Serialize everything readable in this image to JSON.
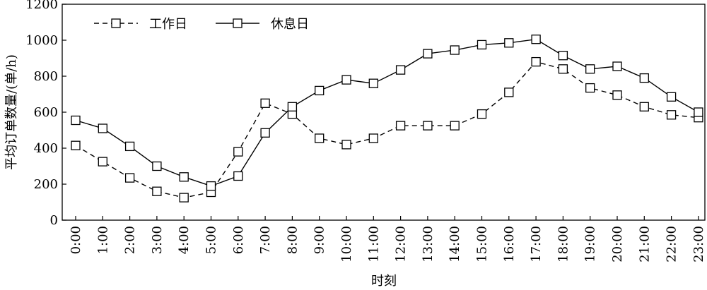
{
  "chart_data": {
    "type": "line",
    "xlabel": "时刻",
    "ylabel": "平均订单数量/(单/h)",
    "ylim": [
      0,
      1200
    ],
    "yticks": [
      0,
      200,
      400,
      600,
      800,
      1000,
      1200
    ],
    "grid": false,
    "legend_position": "top-left",
    "categories": [
      "0:00",
      "1:00",
      "2:00",
      "3:00",
      "4:00",
      "5:00",
      "6:00",
      "7:00",
      "8:00",
      "9:00",
      "10:00",
      "11:00",
      "12:00",
      "13:00",
      "14:00",
      "15:00",
      "16:00",
      "17:00",
      "18:00",
      "19:00",
      "20:00",
      "21:00",
      "22:00",
      "23:00"
    ],
    "series": [
      {
        "name": "工作日",
        "line_style": "dashed",
        "marker": "square",
        "color": "#000000",
        "values": [
          415,
          325,
          235,
          160,
          125,
          155,
          380,
          650,
          590,
          455,
          420,
          455,
          525,
          525,
          525,
          590,
          710,
          880,
          840,
          735,
          695,
          630,
          585,
          570
        ]
      },
      {
        "name": "休息日",
        "line_style": "solid",
        "marker": "square",
        "color": "#000000",
        "values": [
          555,
          510,
          410,
          300,
          240,
          190,
          245,
          485,
          630,
          720,
          780,
          760,
          835,
          925,
          945,
          975,
          985,
          1005,
          915,
          840,
          855,
          790,
          685,
          600
        ]
      }
    ]
  }
}
